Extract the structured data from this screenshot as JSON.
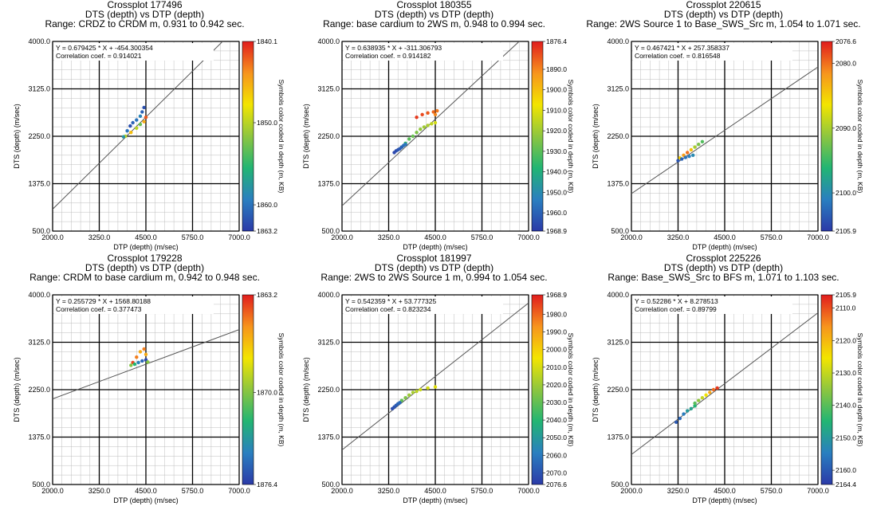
{
  "colors": {
    "scale": [
      "#2b3aa8",
      "#2a7fc0",
      "#22b573",
      "#8dc63f",
      "#f3e500",
      "#f7941d",
      "#e11d1d"
    ],
    "fit_line": "#555555",
    "grid_major": "#000000",
    "grid_minor": "#bdbdbd"
  },
  "chart_data": [
    {
      "type": "scatter",
      "title": "Crossplot 177496",
      "subtitle": "DTS  (depth)  vs DTP  (depth)",
      "range_text": "Range:  CRDZ to CRDM m,   0.931 to 0.942 sec.",
      "equation": "Y = 0.679425 * X + -454.300354",
      "correlation": "Correlation coef. = 0.914021",
      "xlabel": "DTP  (depth)  (m/sec)",
      "ylabel": "DTS  (depth)  (m/sec)",
      "xlim": [
        2000,
        7000
      ],
      "ylim": [
        500,
        4000
      ],
      "x_ticks": [
        "2000.0",
        "3250.0",
        "4500.0",
        "5750.0",
        "7000.0"
      ],
      "y_ticks": [
        "500.0",
        "1375.0",
        "2250.0",
        "3125.0",
        "4000.0"
      ],
      "fit": {
        "slope": 0.679425,
        "intercept": -454.300354
      },
      "colorbar": {
        "label": "Symbols color coded in depth  (m, KB)",
        "min": 1840.1,
        "max": 1863.2,
        "tick_labels": [
          "1840.1",
          "1850.0",
          "1860.0",
          "1863.2"
        ],
        "tick_values": [
          1840.1,
          1850.0,
          1860.0,
          1863.2
        ]
      },
      "clusters": [
        {
          "x": [
            3950,
            4100,
            4250,
            4350,
            4450,
            4500
          ],
          "y": [
            2250,
            2320,
            2400,
            2470,
            2520,
            2600
          ],
          "depth": [
            1850,
            1846,
            1850,
            1853,
            1845,
            1842
          ]
        },
        {
          "x": [
            3900,
            4000,
            4080,
            4150,
            4250,
            4350,
            4400,
            4450
          ],
          "y": [
            2240,
            2350,
            2440,
            2500,
            2550,
            2620,
            2700,
            2780
          ],
          "depth": [
            1858,
            1860,
            1862,
            1861,
            1860,
            1859,
            1861,
            1862
          ]
        }
      ]
    },
    {
      "type": "scatter",
      "title": "Crossplot 180355",
      "subtitle": "DTS  (depth)  vs DTP  (depth)",
      "range_text": "Range:  base cardium to 2WS m,   0.948 to 0.994 sec.",
      "equation": "Y = 0.638935 * X + -311.306793",
      "correlation": "Correlation coef. = 0.914182",
      "xlabel": "DTP  (depth)  (m/sec)",
      "ylabel": "DTS  (depth)  (m/sec)",
      "xlim": [
        2000,
        7000
      ],
      "ylim": [
        500,
        4000
      ],
      "x_ticks": [
        "2000.0",
        "3250.0",
        "4500.0",
        "5750.0",
        "7000.0"
      ],
      "y_ticks": [
        "500.0",
        "1375.0",
        "2250.0",
        "3125.0",
        "4000.0"
      ],
      "fit": {
        "slope": 0.638935,
        "intercept": -311.306793
      },
      "colorbar": {
        "label": "Symbols color coded in depth  (m, KB)",
        "min": 1876.4,
        "max": 1968.9,
        "tick_labels": [
          "1876.4",
          "1890.0",
          "1900.0",
          "1910.0",
          "1920.0",
          "1930.0",
          "1940.0",
          "1950.0",
          "1960.0",
          "1968.9"
        ],
        "tick_values": [
          1876.4,
          1890,
          1900,
          1910,
          1920,
          1930,
          1940,
          1950,
          1960,
          1968.9
        ]
      },
      "clusters": [
        {
          "x": [
            3600,
            3700,
            3800,
            3900,
            4000,
            4100,
            4200,
            4300,
            4400,
            4500
          ],
          "y": [
            2050,
            2120,
            2200,
            2250,
            2320,
            2380,
            2420,
            2450,
            2480,
            2500
          ],
          "depth": [
            1940,
            1935,
            1930,
            1928,
            1925,
            1922,
            1920,
            1918,
            1915,
            1912
          ]
        },
        {
          "x": [
            3400,
            3450,
            3500,
            3550,
            3600,
            3650,
            3700
          ],
          "y": [
            1950,
            1980,
            2000,
            2020,
            2050,
            2080,
            2100
          ],
          "depth": [
            1966,
            1965,
            1963,
            1962,
            1960,
            1958,
            1955
          ]
        },
        {
          "x": [
            4000,
            4150,
            4300,
            4450,
            4550,
            4500
          ],
          "y": [
            2600,
            2650,
            2680,
            2700,
            2720,
            2650
          ],
          "depth": [
            1880,
            1882,
            1884,
            1886,
            1888,
            1890
          ]
        }
      ]
    },
    {
      "type": "scatter",
      "title": "Crossplot 220615",
      "subtitle": "DTS  (depth)  vs DTP  (depth)",
      "range_text": "Range:  2WS Source 1 to Base_SWS_Src m,   1.054 to 1.071 sec.",
      "equation": "Y = 0.467421 * X + 257.358337",
      "correlation": "Correlation coef. = 0.816548",
      "xlabel": "DTP  (depth)  (m/sec)",
      "ylabel": "DTS  (depth)  (m/sec)",
      "xlim": [
        2000,
        7000
      ],
      "ylim": [
        500,
        4000
      ],
      "x_ticks": [
        "2000.0",
        "3250.0",
        "4500.0",
        "5750.0",
        "7000.0"
      ],
      "y_ticks": [
        "500.0",
        "1375.0",
        "2250.0",
        "3125.0",
        "4000.0"
      ],
      "fit": {
        "slope": 0.467421,
        "intercept": 257.358337
      },
      "colorbar": {
        "label": "Symbols color coded in depth  (m, KB)",
        "min": 2076.6,
        "max": 2105.9,
        "tick_labels": [
          "2076.6",
          "2080.0",
          "2090.0",
          "2100.0",
          "2105.9"
        ],
        "tick_values": [
          2076.6,
          2080,
          2090,
          2100,
          2105.9
        ]
      },
      "clusters": [
        {
          "x": [
            3300,
            3400,
            3500,
            3600,
            3700,
            3800,
            3900
          ],
          "y": [
            1850,
            1900,
            1950,
            2000,
            2050,
            2100,
            2150
          ],
          "depth": [
            2085,
            2082,
            2080,
            2084,
            2090,
            2092,
            2094
          ]
        },
        {
          "x": [
            3250,
            3350,
            3450,
            3550,
            3650
          ],
          "y": [
            1800,
            1830,
            1860,
            1880,
            1900
          ],
          "depth": [
            2104,
            2103,
            2102,
            2101,
            2100
          ]
        }
      ]
    },
    {
      "type": "scatter",
      "title": "Crossplot 179228",
      "subtitle": "DTS  (depth)  vs DTP  (depth)",
      "range_text": "Range:  CRDM to base cardium m,   0.942 to 0.948 sec.",
      "equation": "Y = 0.255729 * X + 1568.80188",
      "correlation": "Correlation coef. = 0.377473",
      "xlabel": "DTP  (depth)  (m/sec)",
      "ylabel": "DTS  (depth)  (m/sec)",
      "xlim": [
        2000,
        7000
      ],
      "ylim": [
        500,
        4000
      ],
      "x_ticks": [
        "2000.0",
        "3250.0",
        "4500.0",
        "5750.0",
        "7000.0"
      ],
      "y_ticks": [
        "500.0",
        "1375.0",
        "2250.0",
        "3125.0",
        "4000.0"
      ],
      "fit": {
        "slope": 0.255729,
        "intercept": 1568.80188
      },
      "colorbar": {
        "label": "Symbols color coded in depth  (m, KB)",
        "min": 1863.2,
        "max": 1876.4,
        "tick_labels": [
          "1863.2",
          "1870.0",
          "1876.4"
        ],
        "tick_values": [
          1863.2,
          1870.0,
          1876.4
        ]
      },
      "clusters": [
        {
          "x": [
            4150,
            4250,
            4350,
            4450,
            4500
          ],
          "y": [
            2750,
            2850,
            2950,
            3000,
            2900
          ],
          "depth": [
            1864,
            1865,
            1866,
            1865,
            1866
          ]
        },
        {
          "x": [
            4100,
            4200,
            4300,
            4400,
            4500,
            4550
          ],
          "y": [
            2700,
            2720,
            2750,
            2780,
            2800,
            2760
          ],
          "depth": [
            1870,
            1872,
            1874,
            1875,
            1876,
            1870
          ]
        }
      ]
    },
    {
      "type": "scatter",
      "title": "Crossplot 181997",
      "subtitle": "DTS  (depth)  vs DTP  (depth)",
      "range_text": "Range:  2WS to 2WS Source 1 m,   0.994 to 1.054 sec.",
      "equation": "Y = 0.542359 * X + 53.777325",
      "correlation": "Correlation coef. = 0.823234",
      "xlabel": "DTP  (depth)  (m/sec)",
      "ylabel": "DTS  (depth)  (m/sec)",
      "xlim": [
        2000,
        7000
      ],
      "ylim": [
        500,
        4000
      ],
      "x_ticks": [
        "2000.0",
        "3250.0",
        "4500.0",
        "5750.0",
        "7000.0"
      ],
      "y_ticks": [
        "500.0",
        "1375.0",
        "2250.0",
        "3125.0",
        "4000.0"
      ],
      "fit": {
        "slope": 0.542359,
        "intercept": 53.777325
      },
      "colorbar": {
        "label": "Symbols color coded in depth  (m, KB)",
        "min": 1968.9,
        "max": 2076.6,
        "tick_labels": [
          "1968.9",
          "1980.0",
          "1990.0",
          "2000.0",
          "2010.0",
          "2020.0",
          "2030.0",
          "2040.0",
          "2050.0",
          "2060.0",
          "2070.0",
          "2076.6"
        ],
        "tick_values": [
          1968.9,
          1980,
          1990,
          2000,
          2010,
          2020,
          2030,
          2040,
          2050,
          2060,
          2070,
          2076.6
        ]
      },
      "clusters": [
        {
          "x": [
            3600,
            3700,
            3800,
            3900,
            4000,
            4100,
            4300,
            4500
          ],
          "y": [
            2050,
            2100,
            2150,
            2200,
            2220,
            2250,
            2280,
            2300
          ],
          "depth": [
            2030,
            2025,
            2020,
            2018,
            2015,
            2012,
            2010,
            2008
          ]
        },
        {
          "x": [
            3350,
            3400,
            3450,
            3500,
            3550
          ],
          "y": [
            1900,
            1930,
            1960,
            1990,
            2010
          ],
          "depth": [
            2072,
            2070,
            2068,
            2066,
            2064
          ]
        }
      ]
    },
    {
      "type": "scatter",
      "title": "Crossplot 225226",
      "subtitle": "DTS  (depth)  vs DTP  (depth)",
      "range_text": "Range:  Base_SWS_Src to BFS m,   1.071 to 1.103 sec.",
      "equation": "Y = 0.52286 * X + 8.278513",
      "correlation": "Correlation coef. = 0.89799",
      "xlabel": "DTP  (depth)  (m/sec)",
      "ylabel": "DTS  (depth)  (m/sec)",
      "xlim": [
        2000,
        7000
      ],
      "ylim": [
        500,
        4000
      ],
      "x_ticks": [
        "2000.0",
        "3250.0",
        "4500.0",
        "5750.0",
        "7000.0"
      ],
      "y_ticks": [
        "500.0",
        "1375.0",
        "2250.0",
        "3125.0",
        "4000.0"
      ],
      "fit": {
        "slope": 0.52286,
        "intercept": 8.278513
      },
      "colorbar": {
        "label": "Symbols color coded in depth  (m, KB)",
        "min": 2105.9,
        "max": 2164.4,
        "tick_labels": [
          "2105.9",
          "2110.0",
          "2120.0",
          "2130.0",
          "2140.0",
          "2150.0",
          "2160.0",
          "2164.4"
        ],
        "tick_values": [
          2105.9,
          2110,
          2120,
          2130,
          2140,
          2150,
          2160,
          2164.4
        ]
      },
      "clusters": [
        {
          "x": [
            3200,
            3300,
            3400,
            3500,
            3600,
            3700
          ],
          "y": [
            1650,
            1720,
            1800,
            1860,
            1900,
            1950
          ],
          "depth": [
            2160,
            2158,
            2155,
            2150,
            2148,
            2145
          ]
        },
        {
          "x": [
            3700,
            3800,
            3900,
            4000,
            4100,
            4200,
            4300
          ],
          "y": [
            2000,
            2050,
            2100,
            2150,
            2200,
            2250,
            2280
          ],
          "depth": [
            2140,
            2135,
            2130,
            2125,
            2118,
            2112,
            2108
          ]
        }
      ]
    }
  ]
}
